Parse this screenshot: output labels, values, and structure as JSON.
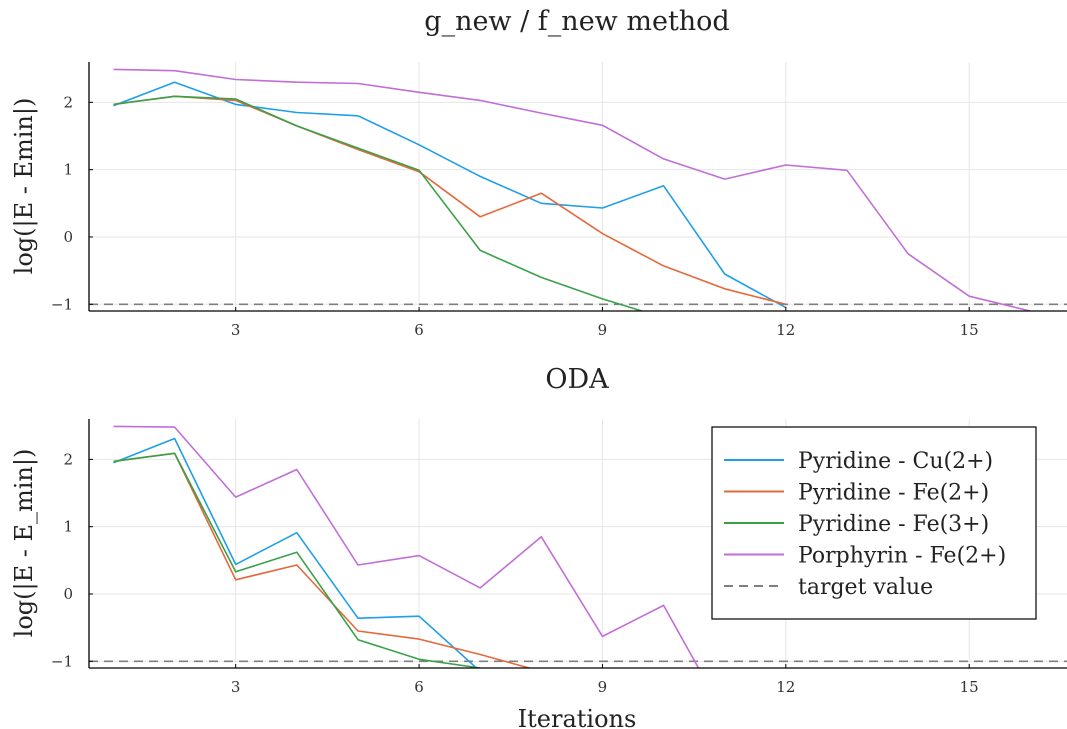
{
  "chart_data": [
    {
      "type": "line",
      "title": "g_new / f_new method",
      "ylabel": "log(|E - Emin|)",
      "xlabel": "",
      "xlim": [
        0.6,
        16.6
      ],
      "ylim": [
        -1.1,
        2.6
      ],
      "xticks": [
        3,
        6,
        9,
        12,
        15
      ],
      "yticks": [
        -1,
        0,
        1,
        2
      ],
      "grid": true,
      "target_value": -1,
      "series": [
        {
          "name": "Pyridine - Cu(2+)",
          "color": "#1f9fe6",
          "x": [
            1,
            2,
            3,
            4,
            5,
            6,
            7,
            8,
            9,
            10,
            11,
            12
          ],
          "y": [
            1.95,
            2.3,
            1.97,
            1.85,
            1.8,
            1.37,
            0.9,
            0.5,
            0.43,
            0.76,
            -0.55,
            -1.05
          ]
        },
        {
          "name": "Pyridine - Fe(2+)",
          "color": "#e5683b",
          "x": [
            1,
            2,
            3,
            4,
            5,
            6,
            7,
            8,
            9,
            10,
            11,
            12
          ],
          "y": [
            1.97,
            2.09,
            2.03,
            1.65,
            1.3,
            0.97,
            0.3,
            0.65,
            0.05,
            -0.43,
            -0.77,
            -1.0
          ]
        },
        {
          "name": "Pyridine - Fe(3+)",
          "color": "#3aa14a",
          "x": [
            1,
            2,
            3,
            4,
            5,
            6,
            7,
            8,
            9,
            10
          ],
          "y": [
            1.97,
            2.09,
            2.05,
            1.65,
            1.32,
            0.99,
            -0.2,
            -0.6,
            -0.92,
            -1.2
          ]
        },
        {
          "name": "Porphyrin - Fe(2+)",
          "color": "#c16fd6",
          "x": [
            1,
            2,
            3,
            4,
            5,
            6,
            7,
            8,
            9,
            10,
            11,
            12,
            13,
            14,
            15,
            16
          ],
          "y": [
            2.49,
            2.47,
            2.34,
            2.3,
            2.28,
            2.15,
            2.03,
            1.84,
            1.66,
            1.16,
            0.86,
            1.07,
            0.99,
            -0.25,
            -0.88,
            -1.1
          ]
        }
      ]
    },
    {
      "type": "line",
      "title": "ODA",
      "ylabel": "log(|E - E_min|)",
      "xlabel": "Iterations",
      "xlim": [
        0.6,
        16.6
      ],
      "ylim": [
        -1.1,
        2.6
      ],
      "xticks": [
        3,
        6,
        9,
        12,
        15
      ],
      "yticks": [
        -1,
        0,
        1,
        2
      ],
      "grid": true,
      "legend": "top-right",
      "target_value": -1,
      "target_label": "target value",
      "series": [
        {
          "name": "Pyridine - Cu(2+)",
          "color": "#1f9fe6",
          "x": [
            1,
            2,
            3,
            4,
            5,
            6,
            7
          ],
          "y": [
            1.95,
            2.31,
            0.44,
            0.91,
            -0.36,
            -0.33,
            -1.15
          ]
        },
        {
          "name": "Pyridine - Fe(2+)",
          "color": "#e5683b",
          "x": [
            1,
            2,
            3,
            4,
            5,
            6,
            7,
            8
          ],
          "y": [
            1.97,
            2.09,
            0.21,
            0.43,
            -0.55,
            -0.67,
            -0.9,
            -1.15
          ]
        },
        {
          "name": "Pyridine - Fe(3+)",
          "color": "#3aa14a",
          "x": [
            1,
            2,
            3,
            4,
            5,
            6,
            7
          ],
          "y": [
            1.97,
            2.09,
            0.33,
            0.62,
            -0.68,
            -0.97,
            -1.1
          ]
        },
        {
          "name": "Porphyrin - Fe(2+)",
          "color": "#c16fd6",
          "x": [
            1,
            2,
            3,
            4,
            5,
            6,
            7,
            8,
            9,
            10,
            11
          ],
          "y": [
            2.49,
            2.48,
            1.44,
            1.85,
            0.43,
            0.57,
            0.09,
            0.85,
            -0.63,
            -0.17,
            -1.8
          ]
        }
      ]
    }
  ]
}
